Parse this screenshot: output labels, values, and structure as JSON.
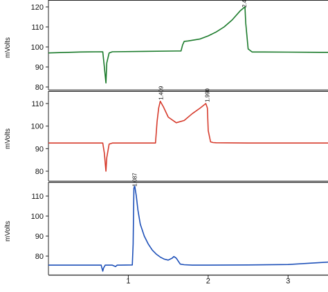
{
  "chart_data": [
    {
      "type": "line",
      "ylabel": "mVolts",
      "ylim": [
        78,
        127
      ],
      "yticks": [
        80,
        90,
        100,
        110,
        120
      ],
      "grid": false,
      "color": "#1a7a2a",
      "peak_labels": [
        {
          "x": 2.45,
          "y": 119,
          "text": "2.45?"
        }
      ],
      "x": [
        0.0,
        0.4,
        0.68,
        0.7,
        0.72,
        0.73,
        0.76,
        0.8,
        1.2,
        1.66,
        1.68,
        1.7,
        1.75,
        1.9,
        2.0,
        2.1,
        2.2,
        2.3,
        2.4,
        2.46,
        2.47,
        2.5,
        2.55,
        2.6,
        3.0,
        3.4,
        3.5
      ],
      "y": [
        97.0,
        97.5,
        97.6,
        90.0,
        82.0,
        92.0,
        97.0,
        97.6,
        97.8,
        98.0,
        101.0,
        102.8,
        103.0,
        104.0,
        105.5,
        107.5,
        110.0,
        113.5,
        118.0,
        120.0,
        112.0,
        99.0,
        97.5,
        97.5,
        97.4,
        97.3,
        97.3
      ]
    },
    {
      "type": "line",
      "ylabel": "mVolts",
      "ylim": [
        76,
        116
      ],
      "yticks": [
        80,
        90,
        100,
        110
      ],
      "grid": false,
      "color": "#d63a2b",
      "peak_labels": [
        {
          "x": 1.409,
          "y": 111,
          "text": "1.409"
        },
        {
          "x": 1.99,
          "y": 110,
          "text": "1.990"
        }
      ],
      "x": [
        0.0,
        0.6,
        0.68,
        0.7,
        0.72,
        0.73,
        0.76,
        0.8,
        1.34,
        1.36,
        1.38,
        1.4,
        1.44,
        1.5,
        1.6,
        1.7,
        1.8,
        1.9,
        1.97,
        1.99,
        2.0,
        2.03,
        2.06,
        2.1,
        2.5,
        3.0,
        3.5
      ],
      "y": [
        92.5,
        92.5,
        92.5,
        88.0,
        80.0,
        86.0,
        92.0,
        92.5,
        92.5,
        102.0,
        108.0,
        111.0,
        108.5,
        104.0,
        101.5,
        102.5,
        105.5,
        108.0,
        110.0,
        108.0,
        98.0,
        93.0,
        92.7,
        92.6,
        92.5,
        92.5,
        92.5
      ]
    },
    {
      "type": "line",
      "ylabel": "mVolts",
      "ylim": [
        68,
        117
      ],
      "yticks": [
        80,
        90,
        100,
        110
      ],
      "grid": false,
      "color": "#1c4fb8",
      "xlim": [
        0,
        3.5
      ],
      "xticks": [
        1,
        2,
        3
      ],
      "peak_labels": [
        {
          "x": 1.08,
          "y": 114,
          "text": "1.087"
        }
      ],
      "x": [
        0.0,
        0.5,
        0.66,
        0.67,
        0.68,
        0.69,
        0.71,
        0.75,
        0.8,
        0.84,
        0.86,
        0.9,
        1.05,
        1.06,
        1.07,
        1.08,
        1.1,
        1.12,
        1.15,
        1.2,
        1.25,
        1.3,
        1.35,
        1.4,
        1.45,
        1.5,
        1.55,
        1.57,
        1.6,
        1.65,
        1.7,
        1.8,
        2.0,
        2.5,
        3.0,
        3.5
      ],
      "y": [
        75.5,
        75.5,
        75.5,
        74.0,
        72.5,
        74.0,
        75.5,
        75.5,
        75.5,
        74.8,
        75.5,
        75.5,
        75.6,
        86.0,
        114.0,
        115.0,
        110.0,
        103.0,
        96.0,
        90.0,
        86.0,
        83.0,
        81.0,
        79.5,
        78.5,
        78.0,
        79.0,
        79.8,
        79.0,
        76.0,
        75.7,
        75.5,
        75.5,
        75.6,
        75.8,
        77.0
      ]
    }
  ]
}
